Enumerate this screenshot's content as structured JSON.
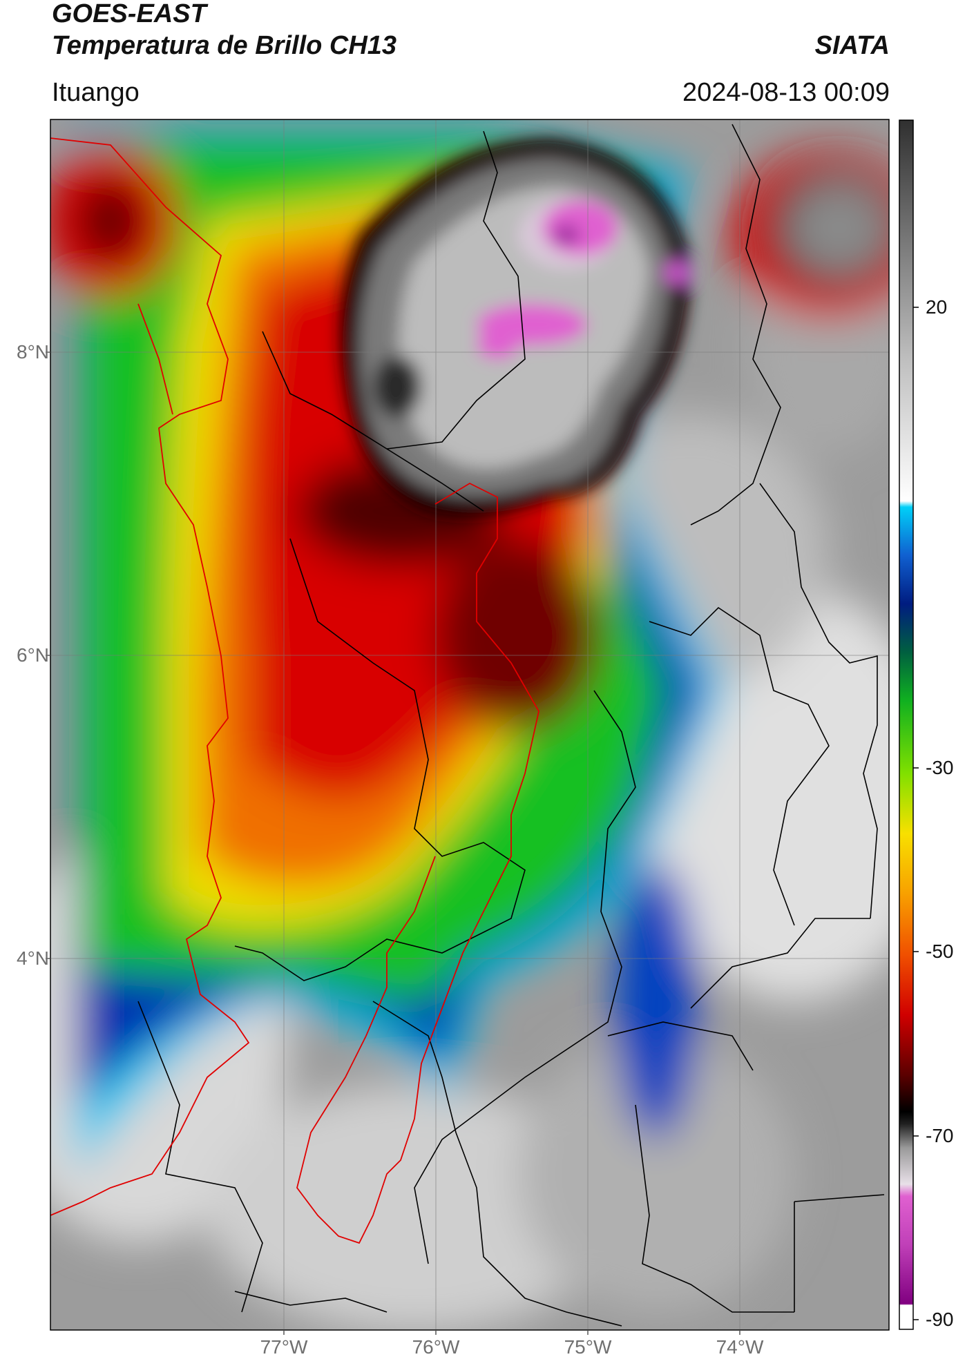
{
  "header": {
    "satellite": "GOES-EAST",
    "product": "Temperatura de Brillo CH13",
    "organization": "SIATA",
    "region": "Ituango",
    "timestamp": "2024-08-13 00:09"
  },
  "map": {
    "lat_labels": [
      "8°N",
      "6°N",
      "4°N"
    ],
    "lon_labels": [
      "77°W",
      "76°W",
      "75°W",
      "74°W"
    ],
    "lat_range": [
      1.9,
      9.9
    ],
    "lon_range": [
      -78.55,
      -72.6
    ],
    "gridlines": true
  },
  "colorbar": {
    "tick_labels": [
      "20",
      "-30",
      "-50",
      "-70",
      "-90"
    ],
    "range": [
      -93,
      43
    ],
    "colors": {
      "warm_gray": "#4a4a4a",
      "white": "#ffffff",
      "cyan": "#00c8f0",
      "blue": "#0028a0",
      "green": "#10c020",
      "yellow": "#f8e000",
      "orange": "#f07000",
      "red": "#d00000",
      "dark_red": "#3a0000",
      "magenta": "#e040c8",
      "purple": "#800080"
    }
  }
}
